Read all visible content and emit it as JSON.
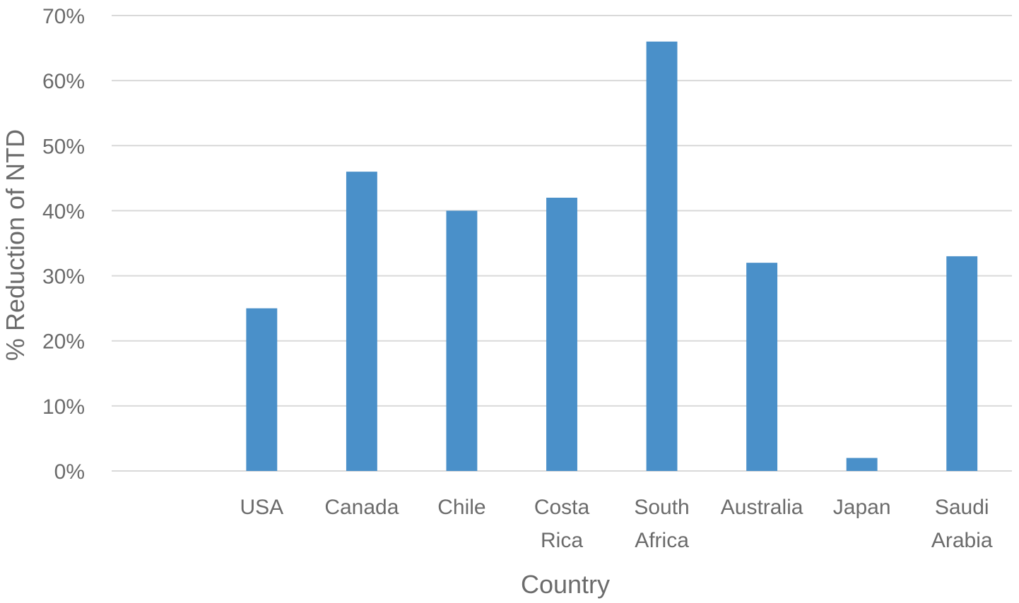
{
  "chart_data": {
    "type": "bar",
    "title": "",
    "xlabel": "Country",
    "ylabel": "% Reduction of NTD",
    "categories": [
      "",
      "USA",
      "Canada",
      "Chile",
      "Costa Rica",
      "South Africa",
      "Australia",
      "Japan",
      "Saudi Arabia"
    ],
    "category_lines": [
      [
        ""
      ],
      [
        "USA"
      ],
      [
        "Canada"
      ],
      [
        "Chile"
      ],
      [
        "Costa",
        "Rica"
      ],
      [
        "South",
        "Africa"
      ],
      [
        "Australia"
      ],
      [
        "Japan"
      ],
      [
        "Saudi",
        "Arabia"
      ]
    ],
    "values": [
      null,
      25,
      46,
      40,
      42,
      66,
      32,
      2,
      33
    ],
    "ylim": [
      0,
      70
    ],
    "yticks": [
      0,
      10,
      20,
      30,
      40,
      50,
      60,
      70
    ],
    "ytick_labels": [
      "0%",
      "10%",
      "20%",
      "30%",
      "40%",
      "50%",
      "60%",
      "70%"
    ],
    "grid": true,
    "legend": "none",
    "bar_color": "#4a90c9",
    "grid_color": "#d9d9d9",
    "text_color": "#6b6b6b"
  }
}
